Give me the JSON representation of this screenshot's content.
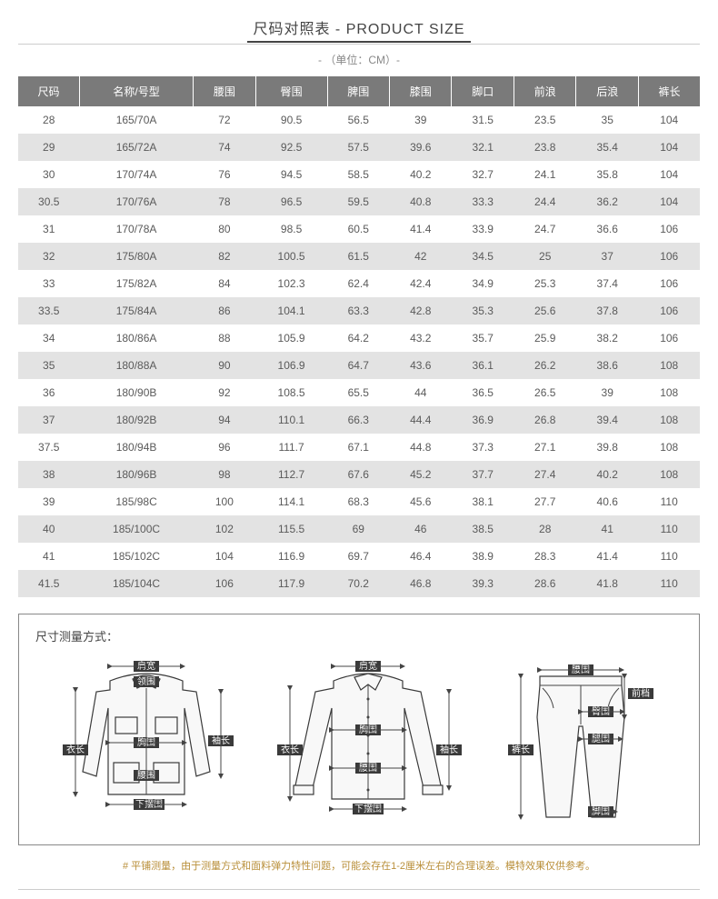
{
  "title": "尺码对照表 - PRODUCT SIZE",
  "unit": "- （单位：CM）-",
  "columns": [
    "尺码",
    "名称/号型",
    "腰围",
    "臀围",
    "脾围",
    "膝围",
    "脚口",
    "前浪",
    "后浪",
    "裤长"
  ],
  "rows": [
    [
      "28",
      "165/70A",
      "72",
      "90.5",
      "56.5",
      "39",
      "31.5",
      "23.5",
      "35",
      "104"
    ],
    [
      "29",
      "165/72A",
      "74",
      "92.5",
      "57.5",
      "39.6",
      "32.1",
      "23.8",
      "35.4",
      "104"
    ],
    [
      "30",
      "170/74A",
      "76",
      "94.5",
      "58.5",
      "40.2",
      "32.7",
      "24.1",
      "35.8",
      "104"
    ],
    [
      "30.5",
      "170/76A",
      "78",
      "96.5",
      "59.5",
      "40.8",
      "33.3",
      "24.4",
      "36.2",
      "104"
    ],
    [
      "31",
      "170/78A",
      "80",
      "98.5",
      "60.5",
      "41.4",
      "33.9",
      "24.7",
      "36.6",
      "106"
    ],
    [
      "32",
      "175/80A",
      "82",
      "100.5",
      "61.5",
      "42",
      "34.5",
      "25",
      "37",
      "106"
    ],
    [
      "33",
      "175/82A",
      "84",
      "102.3",
      "62.4",
      "42.4",
      "34.9",
      "25.3",
      "37.4",
      "106"
    ],
    [
      "33.5",
      "175/84A",
      "86",
      "104.1",
      "63.3",
      "42.8",
      "35.3",
      "25.6",
      "37.8",
      "106"
    ],
    [
      "34",
      "180/86A",
      "88",
      "105.9",
      "64.2",
      "43.2",
      "35.7",
      "25.9",
      "38.2",
      "106"
    ],
    [
      "35",
      "180/88A",
      "90",
      "106.9",
      "64.7",
      "43.6",
      "36.1",
      "26.2",
      "38.6",
      "108"
    ],
    [
      "36",
      "180/90B",
      "92",
      "108.5",
      "65.5",
      "44",
      "36.5",
      "26.5",
      "39",
      "108"
    ],
    [
      "37",
      "180/92B",
      "94",
      "110.1",
      "66.3",
      "44.4",
      "36.9",
      "26.8",
      "39.4",
      "108"
    ],
    [
      "37.5",
      "180/94B",
      "96",
      "111.7",
      "67.1",
      "44.8",
      "37.3",
      "27.1",
      "39.8",
      "108"
    ],
    [
      "38",
      "180/96B",
      "98",
      "112.7",
      "67.6",
      "45.2",
      "37.7",
      "27.4",
      "40.2",
      "108"
    ],
    [
      "39",
      "185/98C",
      "100",
      "114.1",
      "68.3",
      "45.6",
      "38.1",
      "27.7",
      "40.6",
      "110"
    ],
    [
      "40",
      "185/100C",
      "102",
      "115.5",
      "69",
      "46",
      "38.5",
      "28",
      "41",
      "110"
    ],
    [
      "41",
      "185/102C",
      "104",
      "116.9",
      "69.7",
      "46.4",
      "38.9",
      "28.3",
      "41.4",
      "110"
    ],
    [
      "41.5",
      "185/104C",
      "106",
      "117.9",
      "70.2",
      "46.8",
      "39.3",
      "28.6",
      "41.8",
      "110"
    ]
  ],
  "diagram_title": "尺寸测量方式：",
  "jacket_labels": {
    "shoulder": "肩宽",
    "collar": "领围",
    "chest": "胸围",
    "waist": "腰围",
    "hem": "下摆围",
    "length": "衣长",
    "sleeve": "袖长"
  },
  "shirt_labels": {
    "shoulder": "肩宽",
    "chest": "胸围",
    "waist": "腰围",
    "hem": "下摆围",
    "length": "衣长",
    "sleeve": "袖长"
  },
  "pants_labels": {
    "waist": "腰围",
    "hip": "臀围",
    "thigh": "腿围",
    "hem": "脚围",
    "length": "裤长",
    "rise": "前档"
  },
  "footer": "# 平铺测量，由于测量方式和面料弹力特性问题，可能会存在1-2厘米左右的合理误差。模特效果仅供参考。",
  "colors": {
    "header_bg": "#7a7a7a",
    "row_even": "#e3e3e3",
    "row_odd": "#ffffff",
    "footer_color": "#b98f3a"
  }
}
